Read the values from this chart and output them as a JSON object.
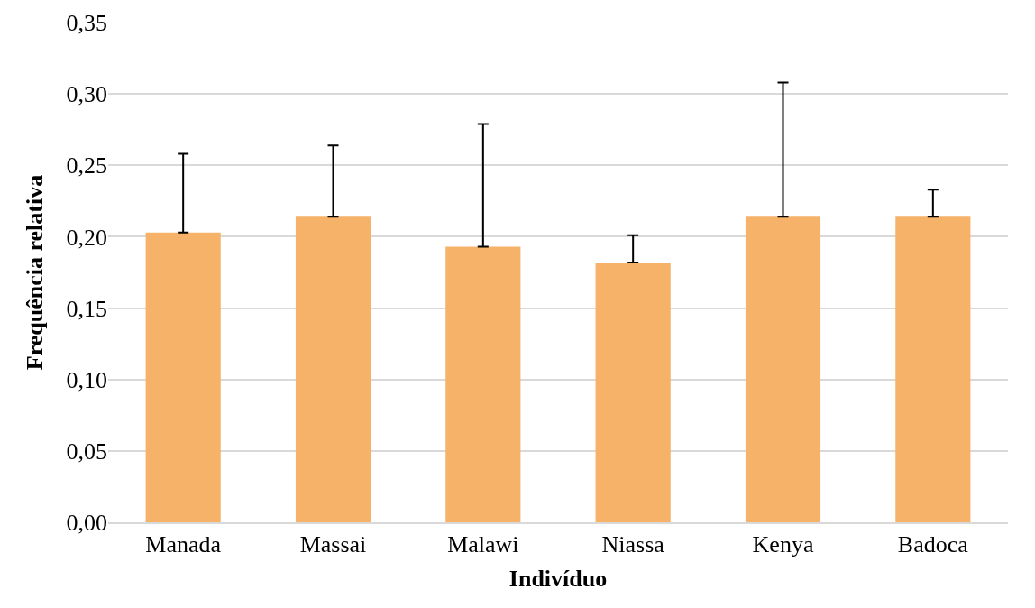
{
  "chart_data": {
    "type": "bar",
    "xlabel": "Indivíduo",
    "ylabel": "Frequência relativa",
    "categories": [
      "Manada",
      "Massai",
      "Malawi",
      "Niassa",
      "Kenya",
      "Badoca"
    ],
    "values": [
      0.203,
      0.214,
      0.193,
      0.182,
      0.214,
      0.214
    ],
    "errors": [
      [
        0.203,
        0.258
      ],
      [
        0.214,
        0.264
      ],
      [
        0.193,
        0.279
      ],
      [
        0.182,
        0.201
      ],
      [
        0.214,
        0.308
      ],
      [
        0.214,
        0.233
      ]
    ],
    "color": "#f7b26a",
    "ylim": [
      0,
      0.35
    ],
    "yticks": [
      {
        "value": 0,
        "label": "0,00"
      },
      {
        "value": 0.05,
        "label": "0,05"
      },
      {
        "value": 0.1,
        "label": "0,10"
      },
      {
        "value": 0.15,
        "label": "0,15"
      },
      {
        "value": 0.2,
        "label": "0,20"
      },
      {
        "value": 0.25,
        "label": "0,25"
      },
      {
        "value": 0.3,
        "label": "0,30"
      },
      {
        "value": 0.35,
        "label": "0,35"
      }
    ],
    "grid": "y"
  }
}
